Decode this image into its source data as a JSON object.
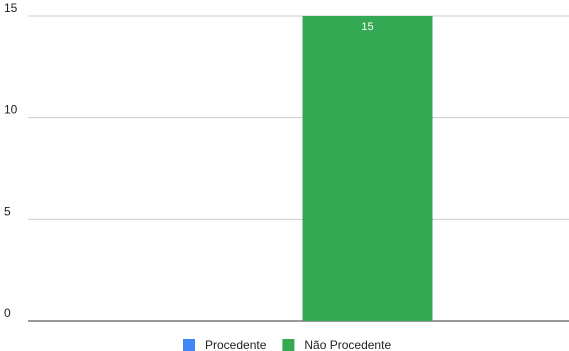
{
  "chart_data": {
    "type": "bar",
    "categories": [
      null
    ],
    "series": [
      {
        "name": "Procedente",
        "color": "#4285f4",
        "values": [
          0
        ]
      },
      {
        "name": "Não Procedente",
        "color": "#34a853",
        "values": [
          15
        ]
      }
    ],
    "ylim": [
      0,
      15
    ],
    "yticks": [
      0,
      5,
      10,
      15
    ],
    "grid": true,
    "legend": "bottom"
  }
}
